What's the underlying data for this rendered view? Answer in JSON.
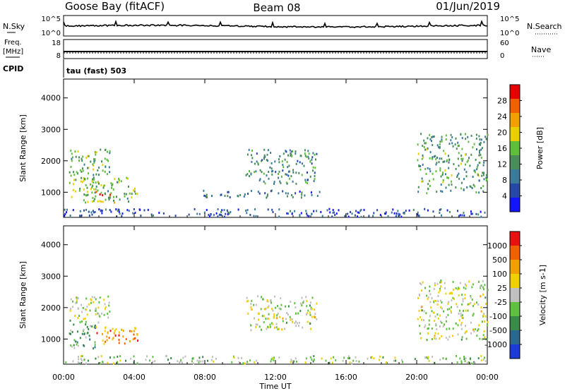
{
  "header": {
    "station": "Goose Bay (fitACF)",
    "beam": "Beam 08",
    "date": "01/Jun/2019"
  },
  "strip_nsky": {
    "left_label": "N.Sky",
    "right_label": "N.Search",
    "left_ticks": [
      "10^5",
      "10^0"
    ],
    "right_ticks": [
      "10^5",
      "10^0"
    ]
  },
  "strip_freq": {
    "left_label_line1": "Freq.",
    "left_label_line2": "[MHz]",
    "right_label": "Nave",
    "left_ticks": [
      "18",
      "8"
    ],
    "right_ticks": [
      "60",
      "0"
    ]
  },
  "cpid": {
    "label": "CPID",
    "value": "tau (fast) 503"
  },
  "colors": {
    "power_scale": [
      "#1414ff",
      "#2848a8",
      "#3c7a9c",
      "#4a8c5a",
      "#5fbf3a",
      "#e8d000",
      "#f0a000",
      "#f06000",
      "#e80000"
    ],
    "velocity_scale": [
      "#1c3ad8",
      "#2a6890",
      "#3a8a4a",
      "#60c040",
      "#c0c0c0",
      "#f0d000",
      "#f0a000",
      "#f06000",
      "#e81010"
    ]
  },
  "chart_data": [
    {
      "type": "heatmap",
      "name": "power",
      "x_range": [
        "00:00",
        "00:00"
      ],
      "ylabel": "Slant Range [km]",
      "ylim": [
        200,
        4600
      ],
      "yticks": [
        1000,
        2000,
        3000,
        4000
      ],
      "colorbar": {
        "label": "Power [dB]",
        "range": [
          0,
          32
        ],
        "ticks": [
          4,
          8,
          12,
          16,
          20,
          24,
          28
        ]
      },
      "echo_regions": [
        {
          "t_start": 0.3,
          "t_end": 2.6,
          "range_min": 1550,
          "range_max": 2400,
          "level": 0.45
        },
        {
          "t_start": 0.3,
          "t_end": 4.2,
          "range_min": 700,
          "range_max": 1500,
          "level": 0.5
        },
        {
          "t_start": 1.8,
          "t_end": 2.6,
          "range_min": 880,
          "range_max": 1050,
          "level": 0.95
        },
        {
          "t_start": 10.3,
          "t_end": 14.3,
          "range_min": 1300,
          "range_max": 2400,
          "level": 0.35
        },
        {
          "t_start": 7.8,
          "t_end": 14.5,
          "range_min": 850,
          "range_max": 1100,
          "level": 0.25
        },
        {
          "t_start": 20.0,
          "t_end": 24.0,
          "range_min": 1000,
          "range_max": 2900,
          "level": 0.4
        },
        {
          "t_start": 0.0,
          "t_end": 24.0,
          "range_min": 250,
          "range_max": 500,
          "level": 0.2
        }
      ]
    },
    {
      "type": "heatmap",
      "name": "velocity",
      "x_range": [
        "00:00",
        "00:00"
      ],
      "xlabel": "Time UT",
      "xticks": [
        "00:00",
        "04:00",
        "08:00",
        "12:00",
        "16:00",
        "20:00",
        "00:00"
      ],
      "ylabel": "Slant Range [km]",
      "ylim": [
        200,
        4600
      ],
      "yticks": [
        1000,
        2000,
        3000,
        4000
      ],
      "colorbar": {
        "label": "Velocity [m s-1]",
        "ticks": [
          "1000",
          "500",
          "100",
          "25",
          "-25",
          "-100",
          "-500",
          "-1000"
        ]
      },
      "echo_regions": [
        {
          "t_start": 0.3,
          "t_end": 2.6,
          "range_min": 1550,
          "range_max": 2400,
          "level": 0.5
        },
        {
          "t_start": 0.3,
          "t_end": 1.8,
          "range_min": 700,
          "range_max": 1500,
          "level": 0.35
        },
        {
          "t_start": 1.8,
          "t_end": 4.2,
          "range_min": 850,
          "range_max": 1450,
          "level": 0.75
        },
        {
          "t_start": 10.3,
          "t_end": 14.3,
          "range_min": 1300,
          "range_max": 2400,
          "level": 0.5
        },
        {
          "t_start": 20.0,
          "t_end": 24.0,
          "range_min": 1000,
          "range_max": 2900,
          "level": 0.5
        },
        {
          "t_start": 0.0,
          "t_end": 24.0,
          "range_min": 250,
          "range_max": 500,
          "level": 0.45
        }
      ]
    }
  ]
}
